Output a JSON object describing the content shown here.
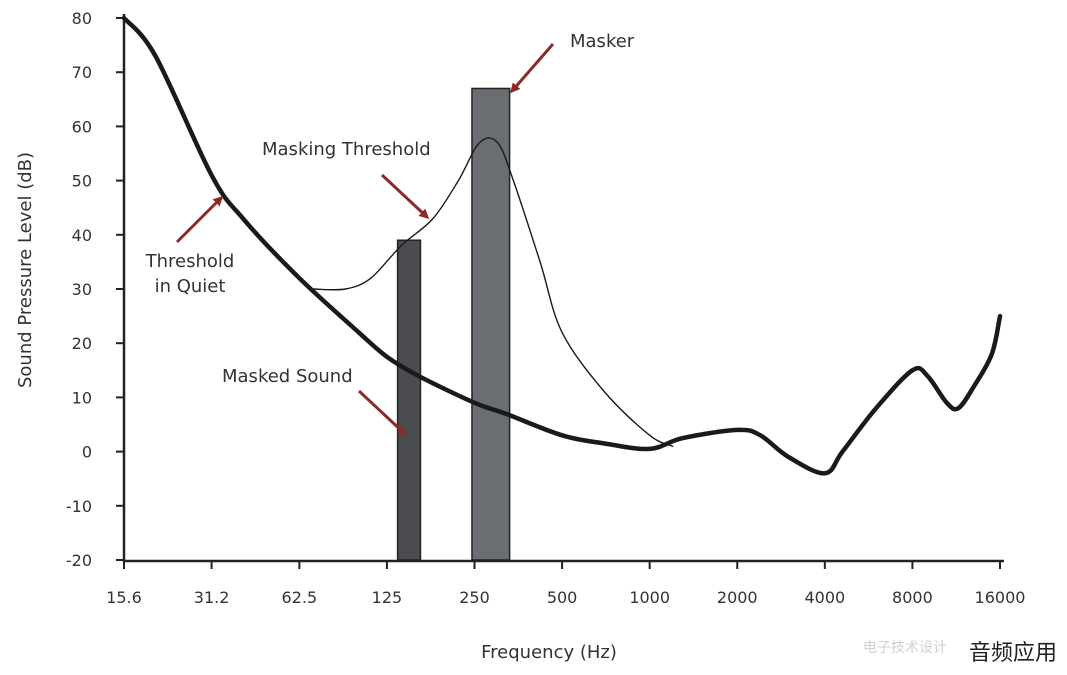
{
  "chart_data": {
    "type": "line",
    "title": "",
    "xlabel": "Frequency (Hz)",
    "ylabel": "Sound Pressure Level (dB)",
    "x_scale": "log2",
    "xlim": [
      15.6,
      16000
    ],
    "ylim": [
      -20,
      80
    ],
    "x_ticks": [
      15.6,
      31.2,
      62.5,
      125,
      250,
      500,
      1000,
      2000,
      4000,
      8000,
      16000
    ],
    "x_tick_labels": [
      "15.6",
      "31.2",
      "62.5",
      "125",
      "250",
      "500",
      "1000",
      "2000",
      "4000",
      "8000",
      "16000"
    ],
    "y_ticks": [
      80,
      70,
      60,
      50,
      40,
      30,
      20,
      10,
      0,
      -10,
      -20
    ],
    "y_tick_labels": [
      "80",
      "70",
      "60",
      "50",
      "40",
      "30",
      "20",
      "10",
      "0",
      "-10",
      "-20"
    ],
    "grid": false,
    "series": [
      {
        "name": "Threshold in Quiet",
        "style": "thick",
        "points": [
          [
            15.6,
            80
          ],
          [
            20,
            73
          ],
          [
            31.2,
            51
          ],
          [
            40,
            43
          ],
          [
            62.5,
            32
          ],
          [
            100,
            22
          ],
          [
            125,
            17.5
          ],
          [
            160,
            14
          ],
          [
            250,
            9
          ],
          [
            320,
            7
          ],
          [
            500,
            3
          ],
          [
            700,
            1.5
          ],
          [
            1000,
            0.5
          ],
          [
            1300,
            2.5
          ],
          [
            2000,
            4
          ],
          [
            2400,
            3
          ],
          [
            3000,
            -1
          ],
          [
            4000,
            -4
          ],
          [
            4600,
            0
          ],
          [
            6000,
            8
          ],
          [
            8000,
            15
          ],
          [
            9000,
            14
          ],
          [
            10500,
            9
          ],
          [
            11500,
            8
          ],
          [
            13000,
            12
          ],
          [
            15000,
            18
          ],
          [
            16000,
            25
          ]
        ]
      },
      {
        "name": "Masking Threshold",
        "style": "thin",
        "points": [
          [
            70,
            30
          ],
          [
            90,
            30
          ],
          [
            110,
            32
          ],
          [
            140,
            38
          ],
          [
            180,
            43
          ],
          [
            220,
            50
          ],
          [
            260,
            57
          ],
          [
            300,
            57
          ],
          [
            340,
            50
          ],
          [
            420,
            35
          ],
          [
            500,
            22
          ],
          [
            700,
            11
          ],
          [
            1000,
            3
          ],
          [
            1200,
            1
          ]
        ]
      }
    ],
    "bars": [
      {
        "name": "Masked Sound",
        "freq_from": 136,
        "freq_to": 163,
        "value": 39,
        "color": "#4a4c50"
      },
      {
        "name": "Masker",
        "freq_from": 245,
        "freq_to": 330,
        "value": 67,
        "color": "#6a6d72"
      }
    ],
    "annotations": [
      {
        "text": "Masker",
        "arrow_to": [
          330,
          67
        ]
      },
      {
        "text": "Masking Threshold",
        "arrow_to": [
          175,
          43
        ]
      },
      {
        "text": "Threshold in Quiet",
        "arrow_to": [
          33,
          50
        ]
      },
      {
        "text": "Masked Sound",
        "arrow_to": [
          140,
          3
        ]
      }
    ],
    "arrow_color": "#8b2a2a"
  },
  "labels": {
    "masker": "Masker",
    "masking_threshold": "Masking Threshold",
    "threshold_line1": "Threshold",
    "threshold_line2": "in Quiet",
    "masked_sound": "Masked Sound"
  },
  "watermark": {
    "text": "音频应用",
    "sub": "电子技术设计"
  }
}
